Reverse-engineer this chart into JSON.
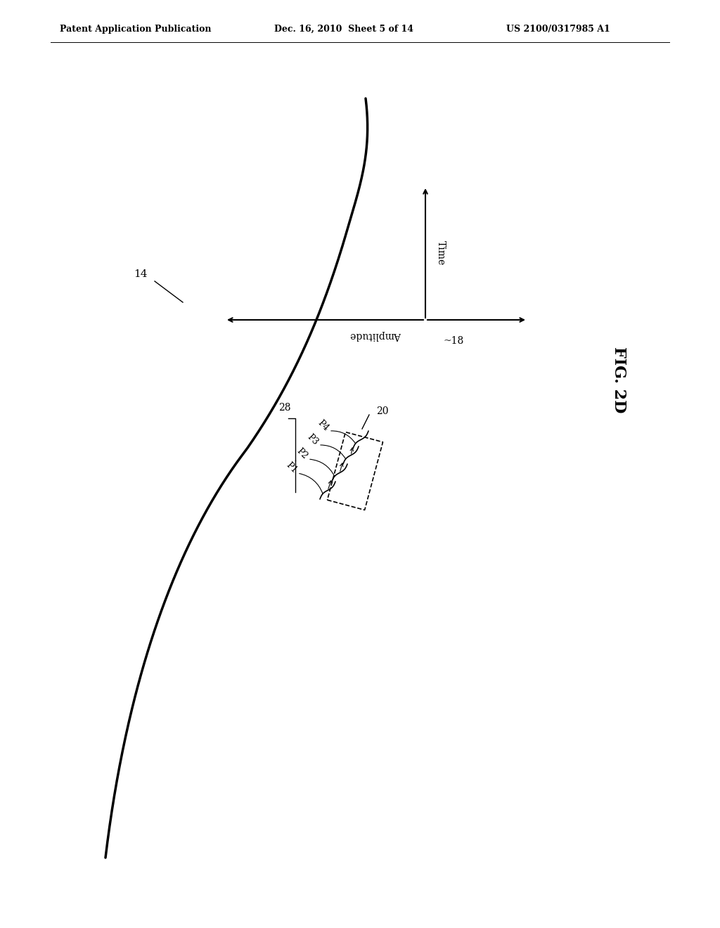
{
  "bg_color": "#ffffff",
  "header_left": "Patent Application Publication",
  "header_mid": "Dec. 16, 2010  Sheet 5 of 14",
  "header_right": "US 2100/0317985 A1",
  "fig_label": "FIG. 2D",
  "curve_label": "14",
  "axis_label": "18",
  "box_label": "20",
  "bracket_label": "28",
  "points": [
    "P1",
    "P2",
    "P3",
    "P4"
  ],
  "time_label": "Time",
  "amplitude_label": "Amplitude"
}
